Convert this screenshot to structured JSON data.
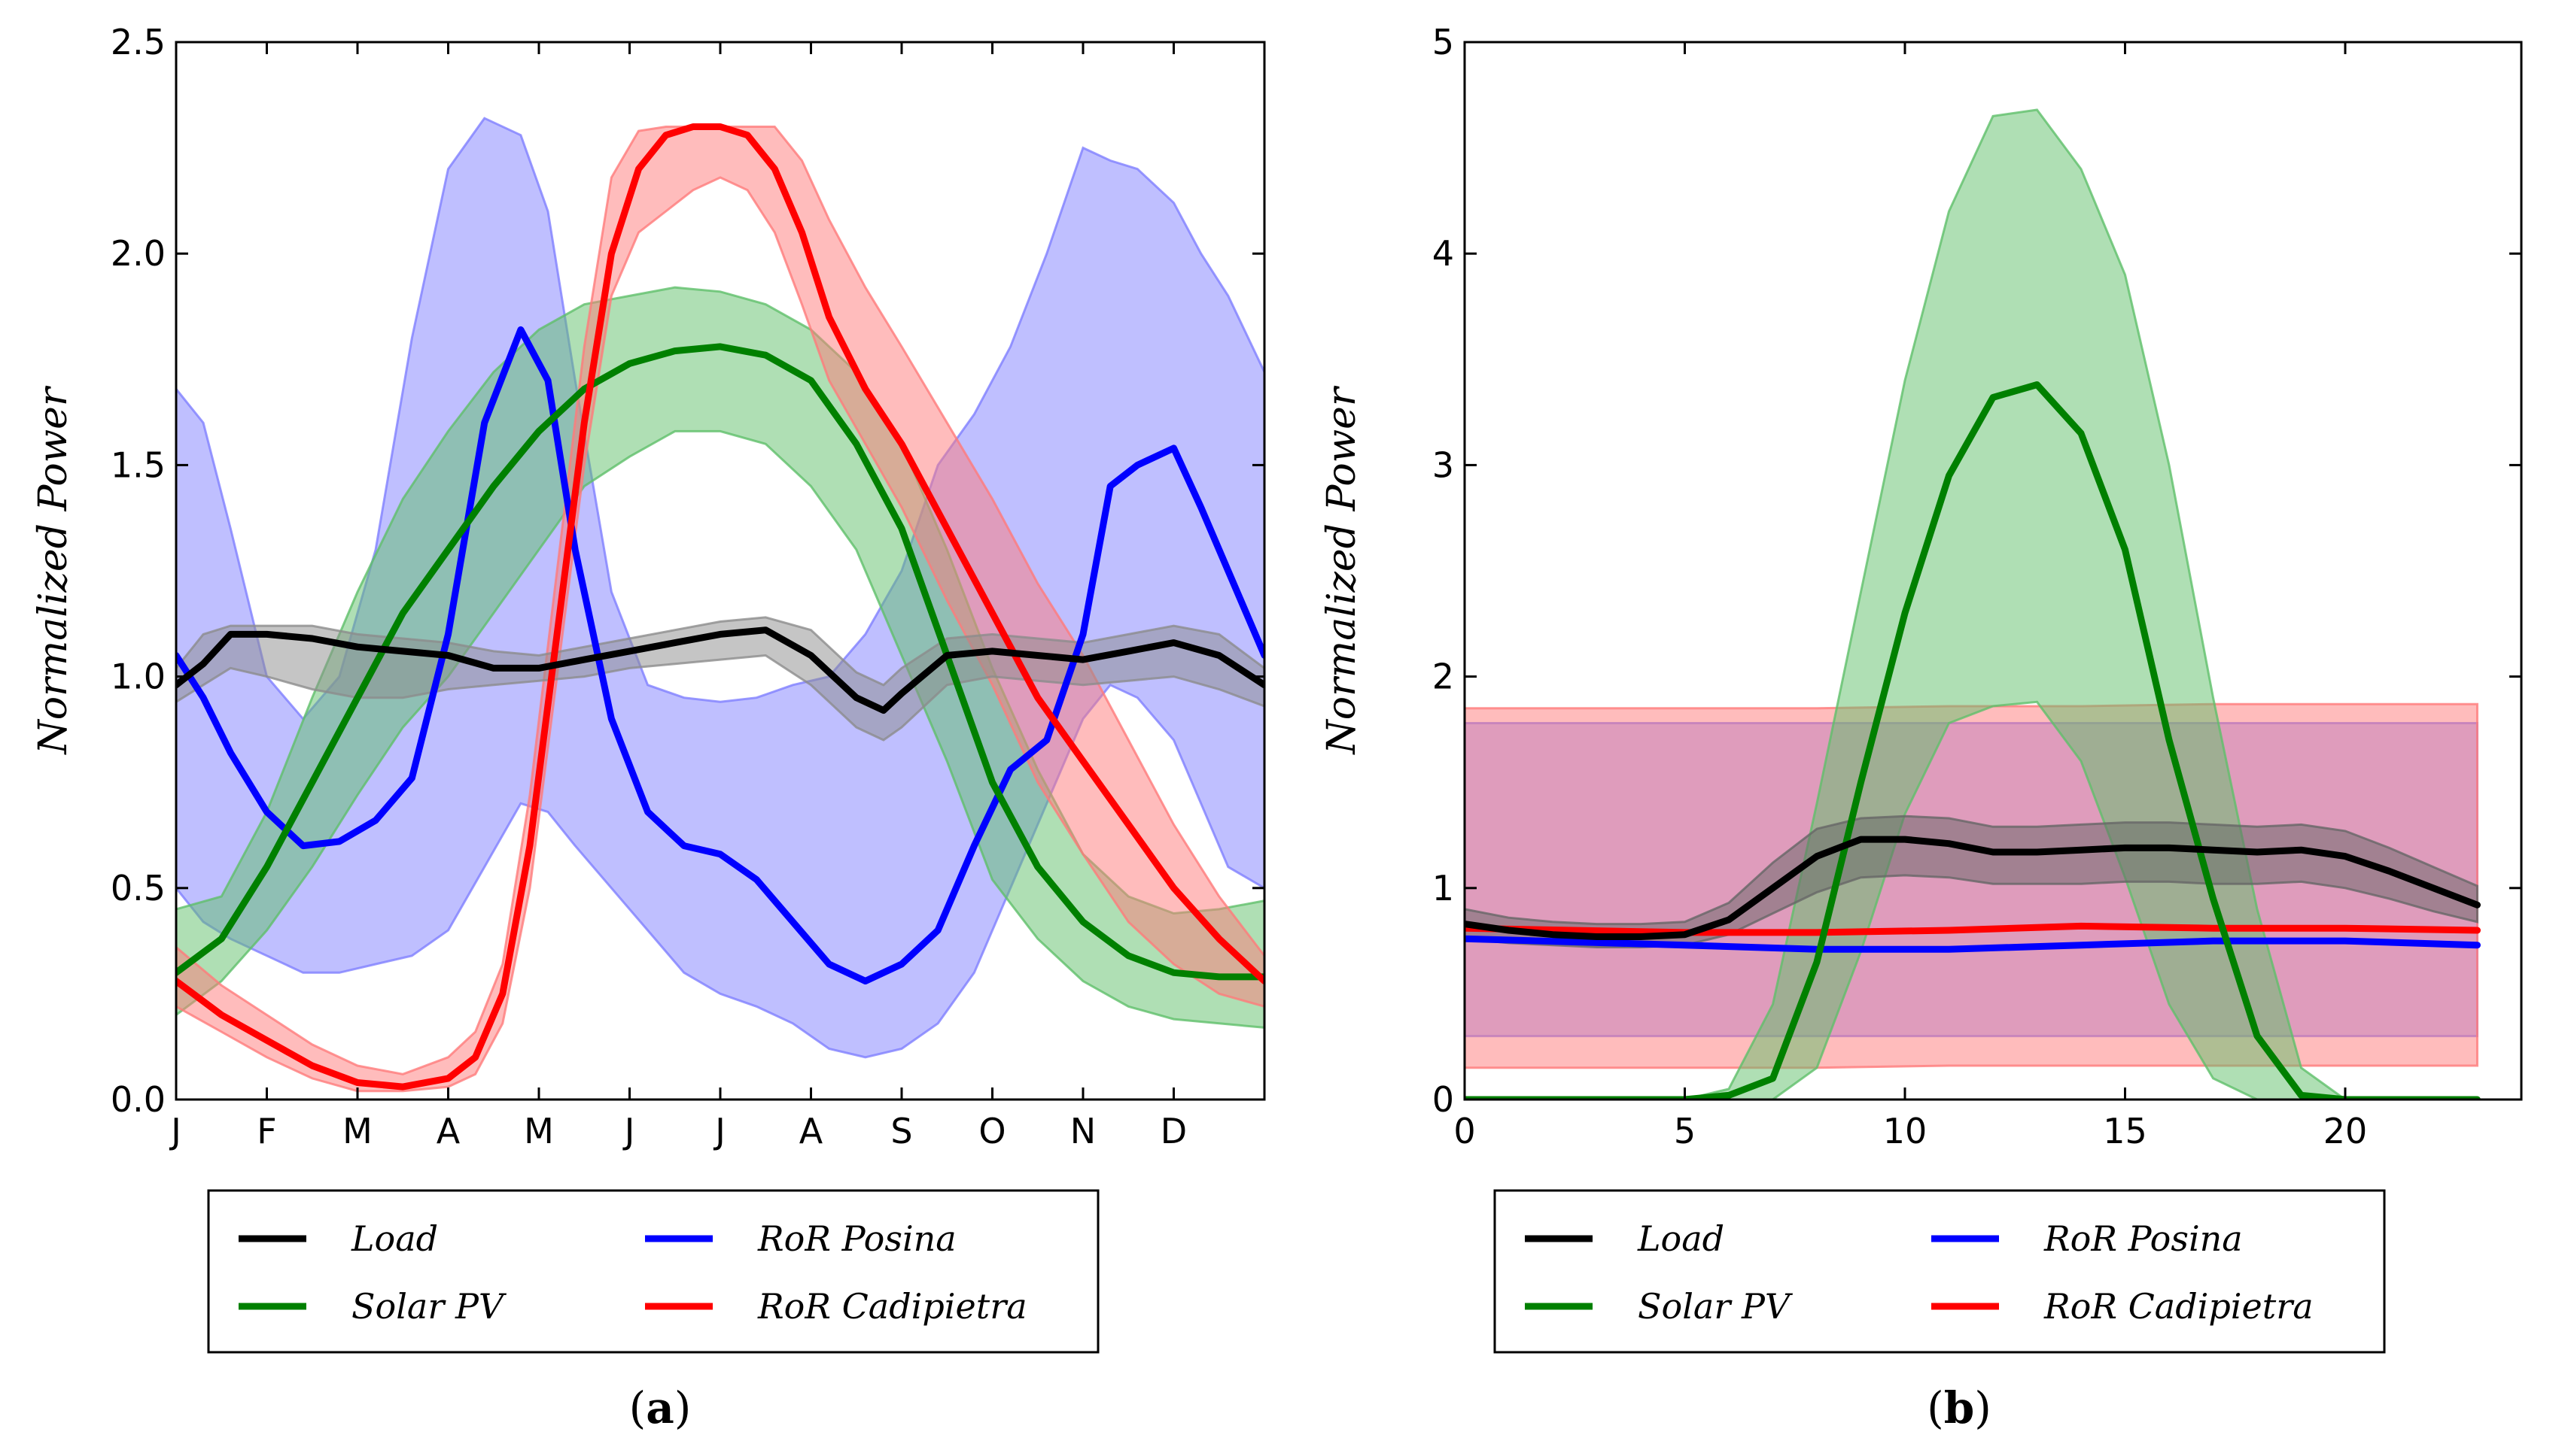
{
  "chart_data": [
    {
      "type": "line",
      "panel": "a",
      "caption": {
        "open": "(",
        "letter": "a",
        "close": ")"
      },
      "ylabel": "Normalized Power",
      "xlabel": "",
      "x_domain": [
        0,
        12
      ],
      "ylim": [
        0,
        2.5
      ],
      "grid": false,
      "legend_position": "bottom",
      "x_ticks": [
        {
          "value": 0,
          "label": "J"
        },
        {
          "value": 1,
          "label": "F"
        },
        {
          "value": 2,
          "label": "M"
        },
        {
          "value": 3,
          "label": "A"
        },
        {
          "value": 4,
          "label": "M"
        },
        {
          "value": 5,
          "label": "J"
        },
        {
          "value": 6,
          "label": "J"
        },
        {
          "value": 7,
          "label": "A"
        },
        {
          "value": 8,
          "label": "S"
        },
        {
          "value": 9,
          "label": "O"
        },
        {
          "value": 10,
          "label": "N"
        },
        {
          "value": 11,
          "label": "D"
        }
      ],
      "y_ticks": [
        {
          "value": 0,
          "label": "0.0"
        },
        {
          "value": 0.5,
          "label": "0.5"
        },
        {
          "value": 1.0,
          "label": "1.0"
        },
        {
          "value": 1.5,
          "label": "1.5"
        },
        {
          "value": 2.0,
          "label": "2.0"
        },
        {
          "value": 2.5,
          "label": "2.5"
        }
      ],
      "series": [
        {
          "key": "posina",
          "name": "RoR Posina",
          "color": "#0000ff",
          "band_color": "#8080ff",
          "x": [
            0,
            0.3,
            0.6,
            1.0,
            1.4,
            1.8,
            2.2,
            2.6,
            3.0,
            3.4,
            3.8,
            4.1,
            4.4,
            4.8,
            5.2,
            5.6,
            6.0,
            6.4,
            6.8,
            7.2,
            7.6,
            8.0,
            8.4,
            8.8,
            9.2,
            9.6,
            10.0,
            10.3,
            10.6,
            11.0,
            11.3,
            11.6,
            12.0
          ],
          "mean": [
            1.05,
            0.95,
            0.82,
            0.68,
            0.6,
            0.61,
            0.66,
            0.76,
            1.1,
            1.6,
            1.82,
            1.7,
            1.3,
            0.9,
            0.68,
            0.6,
            0.58,
            0.52,
            0.42,
            0.32,
            0.28,
            0.32,
            0.4,
            0.6,
            0.78,
            0.85,
            1.1,
            1.45,
            1.5,
            1.54,
            1.4,
            1.25,
            1.05
          ],
          "lower": [
            0.5,
            0.42,
            0.38,
            0.34,
            0.3,
            0.3,
            0.32,
            0.34,
            0.4,
            0.55,
            0.7,
            0.68,
            0.6,
            0.5,
            0.4,
            0.3,
            0.25,
            0.22,
            0.18,
            0.12,
            0.1,
            0.12,
            0.18,
            0.3,
            0.5,
            0.7,
            0.9,
            0.98,
            0.95,
            0.85,
            0.7,
            0.55,
            0.5
          ],
          "upper": [
            1.68,
            1.6,
            1.35,
            1.0,
            0.9,
            1.0,
            1.3,
            1.8,
            2.2,
            2.32,
            2.28,
            2.1,
            1.7,
            1.2,
            0.98,
            0.95,
            0.94,
            0.95,
            0.98,
            1.0,
            1.1,
            1.25,
            1.5,
            1.62,
            1.78,
            2.0,
            2.25,
            2.22,
            2.2,
            2.12,
            2.0,
            1.9,
            1.72
          ]
        },
        {
          "key": "solar",
          "name": "Solar PV",
          "color": "#008000",
          "band_color": "#5fbf6a",
          "x": [
            0,
            0.5,
            1.0,
            1.5,
            2.0,
            2.5,
            3.0,
            3.5,
            4.0,
            4.5,
            5.0,
            5.5,
            6.0,
            6.5,
            7.0,
            7.5,
            8.0,
            8.5,
            9.0,
            9.5,
            10.0,
            10.5,
            11.0,
            11.5,
            12.0
          ],
          "mean": [
            0.3,
            0.38,
            0.55,
            0.75,
            0.95,
            1.15,
            1.3,
            1.45,
            1.58,
            1.68,
            1.74,
            1.77,
            1.78,
            1.76,
            1.7,
            1.55,
            1.35,
            1.05,
            0.75,
            0.55,
            0.42,
            0.34,
            0.3,
            0.29,
            0.29
          ],
          "lower": [
            0.2,
            0.28,
            0.4,
            0.55,
            0.72,
            0.88,
            1.0,
            1.15,
            1.3,
            1.45,
            1.52,
            1.58,
            1.58,
            1.55,
            1.45,
            1.3,
            1.05,
            0.8,
            0.52,
            0.38,
            0.28,
            0.22,
            0.19,
            0.18,
            0.17
          ],
          "upper": [
            0.45,
            0.48,
            0.68,
            0.95,
            1.2,
            1.42,
            1.58,
            1.72,
            1.82,
            1.88,
            1.9,
            1.92,
            1.91,
            1.88,
            1.82,
            1.72,
            1.55,
            1.3,
            1.02,
            0.78,
            0.58,
            0.48,
            0.44,
            0.45,
            0.47
          ]
        },
        {
          "key": "cadipietra",
          "name": "RoR Cadipietra",
          "color": "#ff0000",
          "band_color": "#ff7a7a",
          "x": [
            0,
            0.5,
            1.0,
            1.5,
            2.0,
            2.5,
            3.0,
            3.3,
            3.6,
            3.9,
            4.2,
            4.5,
            4.8,
            5.1,
            5.4,
            5.7,
            6.0,
            6.3,
            6.6,
            6.9,
            7.2,
            7.6,
            8.0,
            8.5,
            9.0,
            9.5,
            10.0,
            10.5,
            11.0,
            11.5,
            12.0
          ],
          "mean": [
            0.28,
            0.2,
            0.14,
            0.08,
            0.04,
            0.03,
            0.05,
            0.1,
            0.25,
            0.6,
            1.1,
            1.6,
            2.0,
            2.2,
            2.28,
            2.3,
            2.3,
            2.28,
            2.2,
            2.05,
            1.85,
            1.68,
            1.55,
            1.35,
            1.15,
            0.95,
            0.8,
            0.65,
            0.5,
            0.38,
            0.28
          ],
          "lower": [
            0.22,
            0.16,
            0.1,
            0.05,
            0.02,
            0.02,
            0.03,
            0.06,
            0.18,
            0.5,
            1.0,
            1.5,
            1.9,
            2.05,
            2.1,
            2.15,
            2.18,
            2.15,
            2.05,
            1.88,
            1.7,
            1.55,
            1.4,
            1.18,
            0.98,
            0.75,
            0.58,
            0.42,
            0.32,
            0.25,
            0.22
          ],
          "upper": [
            0.36,
            0.27,
            0.2,
            0.13,
            0.08,
            0.06,
            0.1,
            0.16,
            0.32,
            0.72,
            1.25,
            1.78,
            2.18,
            2.29,
            2.3,
            2.3,
            2.3,
            2.3,
            2.3,
            2.22,
            2.08,
            1.92,
            1.78,
            1.6,
            1.42,
            1.22,
            1.05,
            0.85,
            0.65,
            0.48,
            0.34
          ]
        },
        {
          "key": "load",
          "name": "Load",
          "color": "#000000",
          "band_color": "#8c8c8c",
          "x": [
            0,
            0.3,
            0.6,
            1.0,
            1.5,
            2.0,
            2.5,
            3.0,
            3.5,
            4.0,
            4.5,
            5.0,
            5.5,
            6.0,
            6.5,
            7.0,
            7.5,
            7.8,
            8.0,
            8.5,
            9.0,
            9.5,
            10.0,
            10.5,
            11.0,
            11.5,
            12.0
          ],
          "mean": [
            0.98,
            1.03,
            1.1,
            1.1,
            1.09,
            1.07,
            1.06,
            1.05,
            1.02,
            1.02,
            1.04,
            1.06,
            1.08,
            1.1,
            1.11,
            1.05,
            0.95,
            0.92,
            0.96,
            1.05,
            1.06,
            1.05,
            1.04,
            1.06,
            1.08,
            1.05,
            0.98
          ],
          "lower": [
            0.94,
            0.98,
            1.02,
            1.0,
            0.97,
            0.95,
            0.95,
            0.97,
            0.98,
            0.99,
            1.0,
            1.02,
            1.03,
            1.04,
            1.05,
            0.98,
            0.88,
            0.85,
            0.88,
            0.98,
            1.0,
            0.99,
            0.98,
            0.99,
            1.0,
            0.97,
            0.93
          ],
          "upper": [
            1.02,
            1.1,
            1.12,
            1.12,
            1.12,
            1.1,
            1.09,
            1.08,
            1.06,
            1.05,
            1.07,
            1.09,
            1.11,
            1.13,
            1.14,
            1.11,
            1.01,
            0.98,
            1.02,
            1.09,
            1.1,
            1.09,
            1.08,
            1.1,
            1.12,
            1.1,
            1.02
          ]
        }
      ],
      "legend": [
        {
          "key": "load",
          "name": "Load",
          "color": "#000000"
        },
        {
          "key": "solar",
          "name": "Solar PV",
          "color": "#008000"
        },
        {
          "key": "posina",
          "name": "RoR Posina",
          "color": "#0000ff"
        },
        {
          "key": "cadipietra",
          "name": "RoR Cadipietra",
          "color": "#ff0000"
        }
      ]
    },
    {
      "type": "line",
      "panel": "b",
      "caption": {
        "open": "(",
        "letter": "b",
        "close": ")"
      },
      "ylabel": "Normalized Power",
      "xlabel": "",
      "x_domain": [
        0,
        24
      ],
      "ylim": [
        0,
        5
      ],
      "grid": false,
      "legend_position": "bottom",
      "x_ticks": [
        {
          "value": 0,
          "label": "0"
        },
        {
          "value": 5,
          "label": "5"
        },
        {
          "value": 10,
          "label": "10"
        },
        {
          "value": 15,
          "label": "15"
        },
        {
          "value": 20,
          "label": "20"
        }
      ],
      "y_ticks": [
        {
          "value": 0,
          "label": "0"
        },
        {
          "value": 1,
          "label": "1"
        },
        {
          "value": 2,
          "label": "2"
        },
        {
          "value": 3,
          "label": "3"
        },
        {
          "value": 4,
          "label": "4"
        },
        {
          "value": 5,
          "label": "5"
        }
      ],
      "series": [
        {
          "key": "posina",
          "name": "RoR Posina",
          "color": "#0000ff",
          "band_color": "#8080ff",
          "x": [
            0,
            5,
            8,
            11,
            14,
            17,
            20,
            23
          ],
          "mean": [
            0.76,
            0.73,
            0.71,
            0.71,
            0.73,
            0.75,
            0.75,
            0.73
          ],
          "lower": [
            0.3,
            0.3,
            0.3,
            0.3,
            0.3,
            0.3,
            0.3,
            0.3
          ],
          "upper": [
            1.78,
            1.78,
            1.78,
            1.78,
            1.78,
            1.78,
            1.78,
            1.78
          ]
        },
        {
          "key": "cadipietra",
          "name": "RoR Cadipietra",
          "color": "#ff0000",
          "band_color": "#ff7a7a",
          "x": [
            0,
            5,
            8,
            11,
            14,
            17,
            20,
            23
          ],
          "mean": [
            0.81,
            0.79,
            0.79,
            0.8,
            0.82,
            0.81,
            0.81,
            0.8
          ],
          "lower": [
            0.15,
            0.15,
            0.15,
            0.16,
            0.16,
            0.16,
            0.16,
            0.16
          ],
          "upper": [
            1.85,
            1.85,
            1.85,
            1.86,
            1.86,
            1.87,
            1.87,
            1.87
          ]
        },
        {
          "key": "solar",
          "name": "Solar PV",
          "color": "#008000",
          "band_color": "#5fbf6a",
          "x": [
            0,
            5,
            6,
            7,
            8,
            9,
            10,
            11,
            12,
            13,
            14,
            15,
            16,
            17,
            18,
            19,
            20,
            23
          ],
          "mean": [
            0,
            0,
            0.02,
            0.1,
            0.65,
            1.5,
            2.3,
            2.95,
            3.32,
            3.38,
            3.15,
            2.6,
            1.7,
            0.95,
            0.3,
            0.02,
            0,
            0
          ],
          "lower": [
            0,
            0,
            0,
            0,
            0.15,
            0.7,
            1.35,
            1.78,
            1.86,
            1.88,
            1.6,
            1.05,
            0.45,
            0.1,
            0,
            0,
            0,
            0
          ],
          "upper": [
            0,
            0,
            0.05,
            0.45,
            1.4,
            2.4,
            3.4,
            4.2,
            4.65,
            4.68,
            4.4,
            3.9,
            3.0,
            1.9,
            0.9,
            0.15,
            0,
            0
          ]
        },
        {
          "key": "load",
          "name": "Load",
          "color": "#000000",
          "band_color": "#666666",
          "x": [
            0,
            1,
            2,
            3,
            4,
            5,
            6,
            7,
            8,
            9,
            10,
            11,
            12,
            13,
            14,
            15,
            16,
            17,
            18,
            19,
            20,
            21,
            22,
            23
          ],
          "mean": [
            0.83,
            0.8,
            0.78,
            0.77,
            0.77,
            0.78,
            0.85,
            1.0,
            1.15,
            1.23,
            1.23,
            1.21,
            1.17,
            1.17,
            1.18,
            1.19,
            1.19,
            1.18,
            1.17,
            1.18,
            1.15,
            1.08,
            1.0,
            0.92
          ],
          "lower": [
            0.76,
            0.74,
            0.73,
            0.72,
            0.72,
            0.73,
            0.78,
            0.88,
            0.98,
            1.05,
            1.06,
            1.05,
            1.02,
            1.02,
            1.02,
            1.03,
            1.03,
            1.02,
            1.02,
            1.03,
            1.0,
            0.95,
            0.89,
            0.84
          ],
          "upper": [
            0.9,
            0.86,
            0.84,
            0.83,
            0.83,
            0.84,
            0.93,
            1.12,
            1.28,
            1.33,
            1.34,
            1.33,
            1.29,
            1.29,
            1.3,
            1.31,
            1.31,
            1.3,
            1.29,
            1.3,
            1.27,
            1.19,
            1.1,
            1.01
          ]
        }
      ],
      "legend": [
        {
          "key": "load",
          "name": "Load",
          "color": "#000000"
        },
        {
          "key": "solar",
          "name": "Solar PV",
          "color": "#008000"
        },
        {
          "key": "posina",
          "name": "RoR Posina",
          "color": "#0000ff"
        },
        {
          "key": "cadipietra",
          "name": "RoR Cadipietra",
          "color": "#ff0000"
        }
      ]
    }
  ]
}
